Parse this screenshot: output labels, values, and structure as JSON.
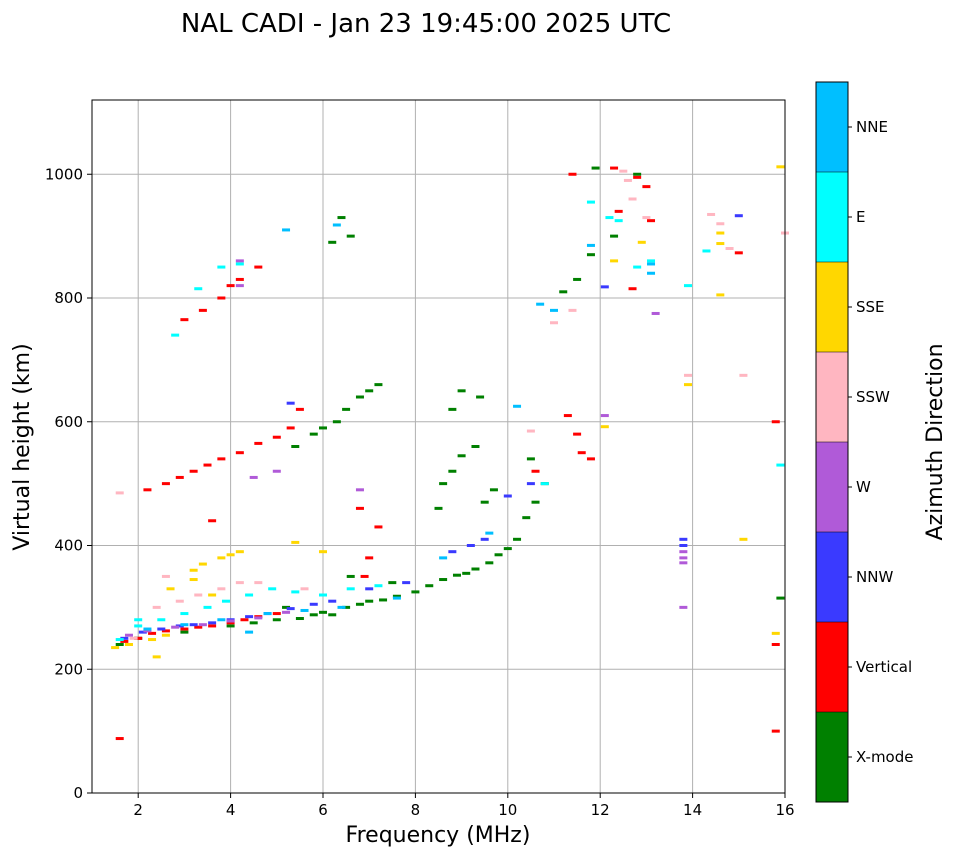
{
  "chart_data": {
    "type": "scatter",
    "title": "NAL CADI - Jan 23 19:45:00 2025 UTC",
    "xlabel": "Frequency (MHz)",
    "ylabel": "Virtual height (km)",
    "xlim": [
      1,
      16
    ],
    "ylim": [
      0,
      1120
    ],
    "xticks": [
      2,
      4,
      6,
      8,
      10,
      12,
      14,
      16
    ],
    "yticks": [
      0,
      200,
      400,
      600,
      800,
      1000
    ],
    "grid": true,
    "colorbar": {
      "label": "Azimuth Direction",
      "categories": [
        {
          "name": "X-mode",
          "color": "#008000"
        },
        {
          "name": "Vertical",
          "color": "#ff0000"
        },
        {
          "name": "NNW",
          "color": "#3a3aff"
        },
        {
          "name": "W",
          "color": "#b05ad8"
        },
        {
          "name": "SSW",
          "color": "#ffb6c1"
        },
        {
          "name": "SSE",
          "color": "#ffd700"
        },
        {
          "name": "E",
          "color": "#00ffff"
        },
        {
          "name": "NNE",
          "color": "#00bfff"
        }
      ]
    },
    "series": [
      {
        "name": "X-mode",
        "points": [
          [
            5.5,
            282
          ],
          [
            5.8,
            288
          ],
          [
            6.0,
            292
          ],
          [
            6.2,
            288
          ],
          [
            6.5,
            300
          ],
          [
            6.8,
            305
          ],
          [
            7.0,
            310
          ],
          [
            7.3,
            312
          ],
          [
            7.6,
            318
          ],
          [
            8.0,
            325
          ],
          [
            8.3,
            335
          ],
          [
            8.6,
            345
          ],
          [
            8.9,
            352
          ],
          [
            9.1,
            355
          ],
          [
            9.3,
            362
          ],
          [
            9.6,
            372
          ],
          [
            9.8,
            385
          ],
          [
            10.0,
            395
          ],
          [
            10.2,
            410
          ],
          [
            10.4,
            445
          ],
          [
            10.6,
            470
          ],
          [
            10.8,
            500
          ],
          [
            10.5,
            540
          ],
          [
            5.4,
            560
          ],
          [
            5.8,
            580
          ],
          [
            6.0,
            590
          ],
          [
            6.3,
            600
          ],
          [
            6.5,
            620
          ],
          [
            6.8,
            640
          ],
          [
            7.0,
            650
          ],
          [
            7.2,
            660
          ],
          [
            8.6,
            500
          ],
          [
            8.8,
            520
          ],
          [
            9.0,
            545
          ],
          [
            9.3,
            560
          ],
          [
            9.5,
            470
          ],
          [
            9.7,
            490
          ],
          [
            8.5,
            460
          ],
          [
            9.0,
            650
          ],
          [
            9.4,
            640
          ],
          [
            8.8,
            620
          ],
          [
            11.2,
            810
          ],
          [
            11.5,
            830
          ],
          [
            11.8,
            870
          ],
          [
            12.3,
            900
          ],
          [
            12.8,
            1000
          ],
          [
            6.4,
            930
          ],
          [
            6.6,
            900
          ],
          [
            6.2,
            890
          ],
          [
            15.9,
            315
          ],
          [
            1.6,
            240
          ],
          [
            2.0,
            250
          ],
          [
            3.0,
            260
          ],
          [
            4.0,
            270
          ],
          [
            4.5,
            275
          ],
          [
            5.0,
            280
          ],
          [
            5.2,
            300
          ],
          [
            6.6,
            350
          ],
          [
            7.5,
            340
          ],
          [
            11.9,
            1010
          ]
        ]
      },
      {
        "name": "Vertical",
        "points": [
          [
            1.6,
            88
          ],
          [
            1.7,
            245
          ],
          [
            2.0,
            250
          ],
          [
            2.3,
            258
          ],
          [
            2.6,
            262
          ],
          [
            3.0,
            265
          ],
          [
            3.3,
            268
          ],
          [
            3.6,
            270
          ],
          [
            4.0,
            275
          ],
          [
            4.3,
            280
          ],
          [
            4.6,
            285
          ],
          [
            5.0,
            290
          ],
          [
            2.2,
            490
          ],
          [
            2.6,
            500
          ],
          [
            2.9,
            510
          ],
          [
            3.2,
            520
          ],
          [
            3.5,
            530
          ],
          [
            3.8,
            540
          ],
          [
            4.2,
            550
          ],
          [
            4.6,
            565
          ],
          [
            5.0,
            575
          ],
          [
            5.3,
            590
          ],
          [
            3.0,
            765
          ],
          [
            3.4,
            780
          ],
          [
            3.8,
            800
          ],
          [
            4.0,
            820
          ],
          [
            4.2,
            830
          ],
          [
            4.6,
            850
          ],
          [
            11.3,
            610
          ],
          [
            11.5,
            580
          ],
          [
            11.6,
            550
          ],
          [
            11.8,
            540
          ],
          [
            10.6,
            520
          ],
          [
            11.4,
            1000
          ],
          [
            12.3,
            1010
          ],
          [
            12.8,
            995
          ],
          [
            13.0,
            980
          ],
          [
            12.4,
            940
          ],
          [
            12.7,
            815
          ],
          [
            13.1,
            925
          ],
          [
            15.0,
            873
          ],
          [
            15.8,
            600
          ],
          [
            15.8,
            240
          ],
          [
            15.8,
            100
          ],
          [
            6.8,
            460
          ],
          [
            7.2,
            430
          ],
          [
            7.0,
            380
          ],
          [
            6.9,
            350
          ],
          [
            5.5,
            620
          ],
          [
            3.6,
            440
          ]
        ]
      },
      {
        "name": "NNW",
        "points": [
          [
            1.7,
            250
          ],
          [
            2.1,
            260
          ],
          [
            2.5,
            265
          ],
          [
            2.9,
            270
          ],
          [
            3.2,
            272
          ],
          [
            3.6,
            275
          ],
          [
            4.0,
            280
          ],
          [
            4.4,
            285
          ],
          [
            4.8,
            290
          ],
          [
            5.3,
            298
          ],
          [
            5.8,
            305
          ],
          [
            6.2,
            310
          ],
          [
            7.0,
            330
          ],
          [
            7.8,
            340
          ],
          [
            8.8,
            390
          ],
          [
            9.2,
            400
          ],
          [
            9.5,
            410
          ],
          [
            10.0,
            480
          ],
          [
            10.5,
            500
          ],
          [
            13.8,
            410
          ],
          [
            13.8,
            400
          ],
          [
            15.0,
            933
          ],
          [
            12.1,
            818
          ],
          [
            5.3,
            630
          ]
        ]
      },
      {
        "name": "W",
        "points": [
          [
            1.8,
            255
          ],
          [
            2.2,
            262
          ],
          [
            2.8,
            268
          ],
          [
            3.4,
            272
          ],
          [
            4.0,
            278
          ],
          [
            4.6,
            283
          ],
          [
            5.2,
            292
          ],
          [
            4.5,
            510
          ],
          [
            5.0,
            520
          ],
          [
            13.8,
            390
          ],
          [
            13.8,
            380
          ],
          [
            13.8,
            372
          ],
          [
            13.8,
            300
          ],
          [
            12.1,
            610
          ],
          [
            13.2,
            775
          ],
          [
            4.2,
            860
          ],
          [
            4.2,
            820
          ],
          [
            6.8,
            490
          ]
        ]
      },
      {
        "name": "SSW",
        "points": [
          [
            1.6,
            485
          ],
          [
            1.9,
            250
          ],
          [
            2.4,
            300
          ],
          [
            2.9,
            310
          ],
          [
            3.3,
            320
          ],
          [
            3.8,
            330
          ],
          [
            4.2,
            340
          ],
          [
            4.6,
            340
          ],
          [
            5.6,
            330
          ],
          [
            12.5,
            1005
          ],
          [
            12.6,
            990
          ],
          [
            12.7,
            960
          ],
          [
            13.0,
            930
          ],
          [
            14.4,
            935
          ],
          [
            14.6,
            920
          ],
          [
            14.8,
            880
          ],
          [
            13.9,
            675
          ],
          [
            15.1,
            675
          ],
          [
            16.0,
            905
          ],
          [
            10.5,
            585
          ],
          [
            11.0,
            760
          ],
          [
            11.4,
            780
          ],
          [
            2.6,
            350
          ]
        ]
      },
      {
        "name": "SSE",
        "points": [
          [
            1.5,
            235
          ],
          [
            1.8,
            240
          ],
          [
            2.3,
            248
          ],
          [
            2.6,
            255
          ],
          [
            3.2,
            360
          ],
          [
            3.4,
            370
          ],
          [
            3.8,
            380
          ],
          [
            4.0,
            385
          ],
          [
            4.2,
            390
          ],
          [
            5.4,
            405
          ],
          [
            6.0,
            390
          ],
          [
            3.2,
            345
          ],
          [
            2.7,
            330
          ],
          [
            3.6,
            320
          ],
          [
            13.9,
            660
          ],
          [
            14.6,
            905
          ],
          [
            14.6,
            888
          ],
          [
            14.6,
            805
          ],
          [
            15.1,
            410
          ],
          [
            15.9,
            1012
          ],
          [
            15.8,
            258
          ],
          [
            12.1,
            592
          ],
          [
            12.3,
            860
          ],
          [
            12.9,
            890
          ],
          [
            2.4,
            220
          ]
        ]
      },
      {
        "name": "E",
        "points": [
          [
            1.6,
            248
          ],
          [
            2.0,
            270
          ],
          [
            2.5,
            280
          ],
          [
            3.0,
            290
          ],
          [
            3.5,
            300
          ],
          [
            3.9,
            310
          ],
          [
            4.4,
            320
          ],
          [
            4.9,
            330
          ],
          [
            5.4,
            325
          ],
          [
            6.0,
            320
          ],
          [
            6.6,
            330
          ],
          [
            7.2,
            335
          ],
          [
            3.3,
            815
          ],
          [
            3.8,
            850
          ],
          [
            4.2,
            855
          ],
          [
            11.8,
            955
          ],
          [
            12.2,
            930
          ],
          [
            12.4,
            925
          ],
          [
            12.8,
            850
          ],
          [
            13.1,
            860
          ],
          [
            13.9,
            820
          ],
          [
            14.3,
            876
          ],
          [
            15.9,
            530
          ],
          [
            10.8,
            500
          ],
          [
            2.0,
            280
          ],
          [
            2.8,
            740
          ]
        ]
      },
      {
        "name": "NNE",
        "points": [
          [
            2.2,
            265
          ],
          [
            3.0,
            272
          ],
          [
            3.8,
            280
          ],
          [
            4.8,
            290
          ],
          [
            5.6,
            295
          ],
          [
            6.4,
            300
          ],
          [
            7.6,
            315
          ],
          [
            10.2,
            625
          ],
          [
            10.7,
            790
          ],
          [
            11.0,
            780
          ],
          [
            11.8,
            885
          ],
          [
            13.1,
            855
          ],
          [
            13.1,
            840
          ],
          [
            5.2,
            910
          ],
          [
            6.3,
            918
          ],
          [
            9.6,
            420
          ],
          [
            8.6,
            380
          ],
          [
            4.4,
            260
          ]
        ]
      }
    ]
  }
}
